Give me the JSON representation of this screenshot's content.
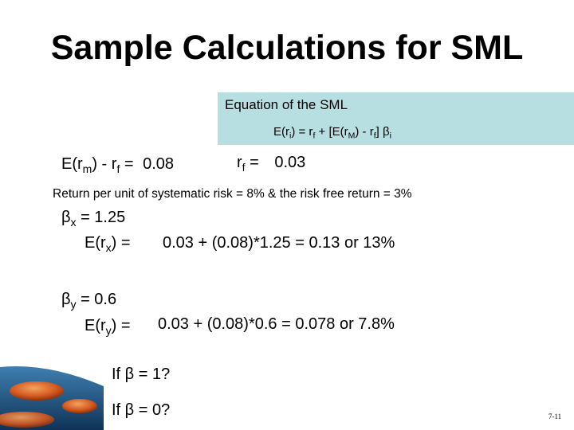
{
  "title": "Sample Calculations for SML",
  "equation_box": {
    "heading": "Equation of the SML",
    "formula": {
      "p1": "E(r",
      "s1": "i",
      "p2": ") = r",
      "s2": "f",
      "p3": " + [E(r",
      "s3": "M",
      "p4": ") - r",
      "s4": "f",
      "p5": "] β",
      "s5": "i"
    }
  },
  "market_premium": {
    "p1": "E(r",
    "s1": "m",
    "p2": ") - r",
    "s2": "f",
    "p3": " = ",
    "value": "0.08"
  },
  "risk_free": {
    "p1": "r",
    "s1": "f",
    "p2": " = ",
    "value": "0.03"
  },
  "note": "Return per unit of systematic risk = 8% & the risk free return = 3%",
  "beta_x": {
    "p1": "β",
    "s1": "x",
    "p2": " = 1.25"
  },
  "return_x": {
    "p1": "E(r",
    "s1": "x",
    "p2": ") = ",
    "calc": "0.03 + (0.08)*1.25 = 0.13 or 13%"
  },
  "beta_y": {
    "p1": "β",
    "s1": "y",
    "p2": " = 0.6"
  },
  "return_y": {
    "p1": "E(r",
    "s1": "y",
    "p2": ") = ",
    "calc": "0.03 + (0.08)*0.6 = 0.078 or 7.8%"
  },
  "question_1": "If β = 1?",
  "question_2": "If β = 0?",
  "slide_number": "7-11",
  "colors": {
    "equation_box": "#b7dfe1",
    "text": "#000000",
    "background": "#ffffff"
  }
}
